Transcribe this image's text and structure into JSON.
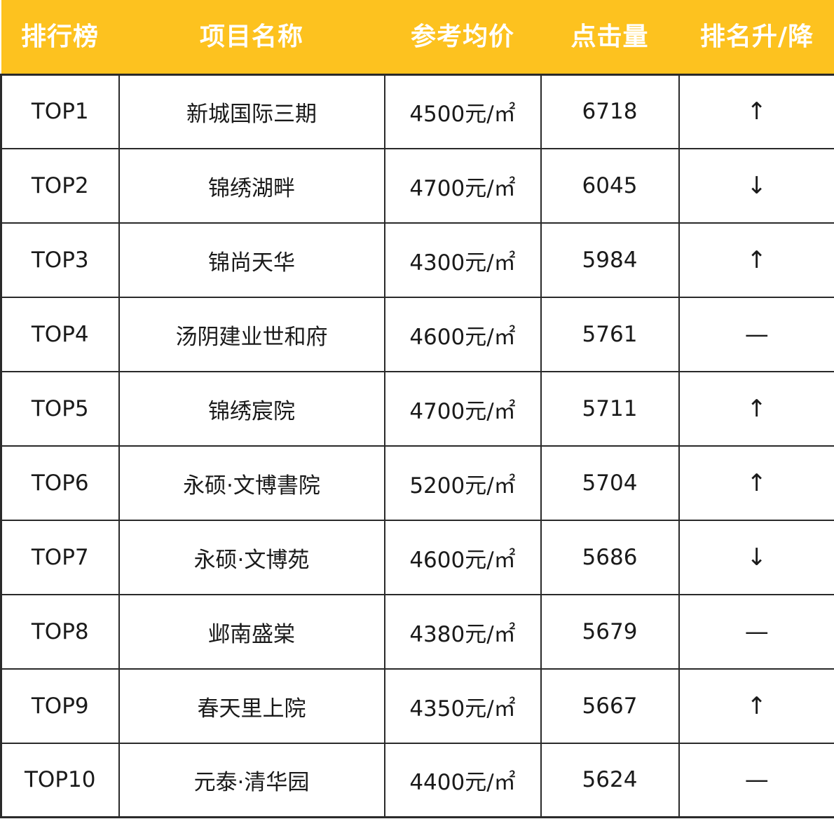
{
  "header": {
    "rank": "排行榜",
    "name": "项目名称",
    "price": "参考均价",
    "clicks": "点击量",
    "change": "排名升/降"
  },
  "rows": [
    {
      "rank": "TOP1",
      "name": "新城国际三期",
      "price": "4500元/㎡",
      "clicks": "6718",
      "change": "↑"
    },
    {
      "rank": "TOP2",
      "name": "锦绣湖畔",
      "price": "4700元/㎡",
      "clicks": "6045",
      "change": "↓"
    },
    {
      "rank": "TOP3",
      "name": "锦尚天华",
      "price": "4300元/㎡",
      "clicks": "5984",
      "change": "↑"
    },
    {
      "rank": "TOP4",
      "name": "汤阴建业世和府",
      "price": "4600元/㎡",
      "clicks": "5761",
      "change": "—"
    },
    {
      "rank": "TOP5",
      "name": "锦绣宸院",
      "price": "4700元/㎡",
      "clicks": "5711",
      "change": "↑"
    },
    {
      "rank": "TOP6",
      "name": "永硕·文博書院",
      "price": "5200元/㎡",
      "clicks": "5704",
      "change": "↑"
    },
    {
      "rank": "TOP7",
      "name": "永硕·文博苑",
      "price": "4600元/㎡",
      "clicks": "5686",
      "change": "↓"
    },
    {
      "rank": "TOP8",
      "name": "邺南盛棠",
      "price": "4380元/㎡",
      "clicks": "5679",
      "change": "—"
    },
    {
      "rank": "TOP9",
      "name": "春天里上院",
      "price": "4350元/㎡",
      "clicks": "5667",
      "change": "↑"
    },
    {
      "rank": "TOP10",
      "name": "元泰·清华园",
      "price": "4400元/㎡",
      "clicks": "5624",
      "change": "—"
    }
  ],
  "colors": {
    "header_bg": "#fdc21f",
    "header_text": "#ffffff",
    "border": "#2a2a2a",
    "body_text": "#1a1a1a"
  }
}
